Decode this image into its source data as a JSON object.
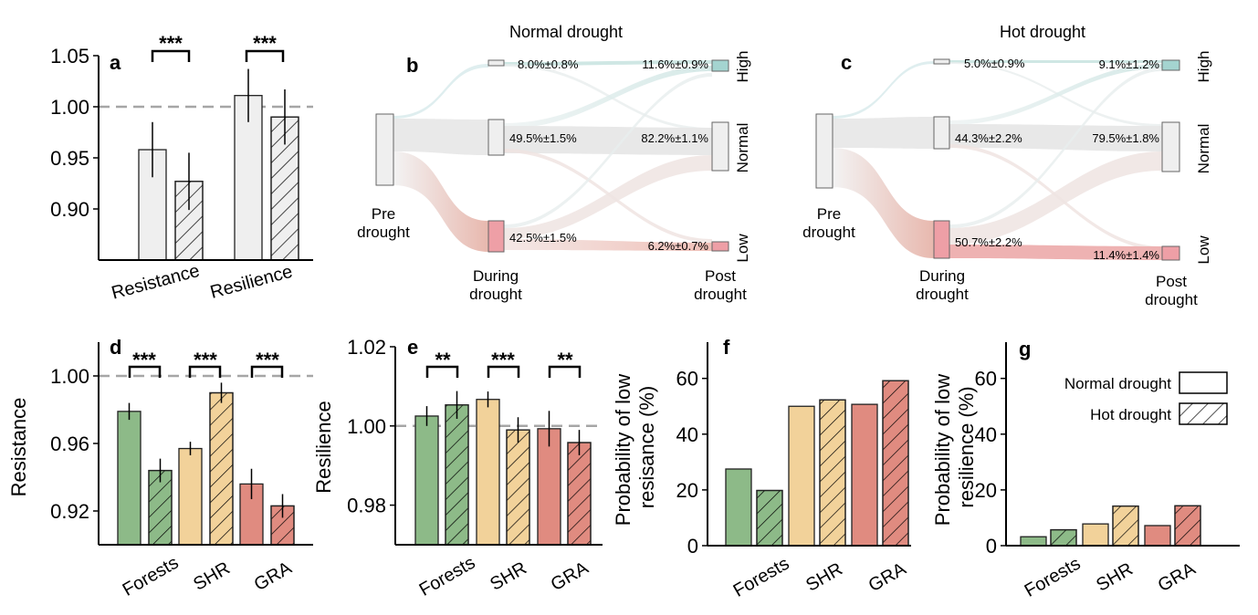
{
  "colors": {
    "neutral": "#efefef",
    "forests": "#8dba88",
    "shr": "#f2d29a",
    "gra": "#e08b80",
    "high": "#a4d4d0",
    "low": "#ee9fa6",
    "dash": "#a6a6a6"
  },
  "chart_data": [
    {
      "id": "a",
      "type": "bar",
      "panel_label": "a",
      "categories": [
        "Resistance",
        "Resilience"
      ],
      "series": [
        {
          "pattern": "solid",
          "values": [
            0.958,
            1.011
          ],
          "errors": [
            0.027,
            0.026
          ]
        },
        {
          "pattern": "hatched",
          "values": [
            0.927,
            0.99
          ],
          "errors": [
            0.028,
            0.027
          ]
        }
      ],
      "ylim": [
        0.85,
        1.05
      ],
      "yticks": [
        "0.90",
        "0.95",
        "1.00",
        "1.05"
      ],
      "reference_line": 1.0,
      "significance": [
        "***",
        "***"
      ]
    },
    {
      "id": "b",
      "type": "sankey",
      "panel_label": "b",
      "title": "Normal drought",
      "nodes": {
        "pre": "Pre drought",
        "during": "During drought",
        "post": "Post drought"
      },
      "states": [
        "High",
        "Normal",
        "Low"
      ],
      "during_pct": [
        "8.0%±0.8%",
        "49.5%±1.5%",
        "42.5%±1.5%"
      ],
      "post_pct": [
        "11.6%±0.9%",
        "82.2%±1.1%",
        "6.2%±0.7%"
      ]
    },
    {
      "id": "c",
      "type": "sankey",
      "panel_label": "c",
      "title": "Hot drought",
      "nodes": {
        "pre": "Pre drought",
        "during": "During drought",
        "post": "Post drought"
      },
      "states": [
        "High",
        "Normal",
        "Low"
      ],
      "during_pct": [
        "5.0%±0.9%",
        "44.3%±2.2%",
        "50.7%±2.2%"
      ],
      "post_pct": [
        "9.1%±1.2%",
        "79.5%±1.8%",
        "11.4%±1.4%"
      ]
    },
    {
      "id": "d",
      "type": "bar",
      "panel_label": "d",
      "ylabel": "Resistance",
      "categories": [
        "Forests",
        "SHR",
        "GRA"
      ],
      "series": [
        {
          "pattern": "solid",
          "values": [
            0.979,
            0.957,
            0.936
          ],
          "errors": [
            0.005,
            0.004,
            0.009
          ]
        },
        {
          "pattern": "hatched",
          "values": [
            0.944,
            0.99,
            0.923
          ],
          "errors": [
            0.007,
            0.006,
            0.007
          ]
        }
      ],
      "ylim": [
        0.9,
        1.02
      ],
      "yticks": [
        "0.92",
        "0.96",
        "1.00"
      ],
      "reference_line": 1.0,
      "significance": [
        "***",
        "***",
        "***"
      ]
    },
    {
      "id": "e",
      "type": "bar",
      "panel_label": "e",
      "ylabel": "Resilience",
      "categories": [
        "Forests",
        "SHR",
        "GRA"
      ],
      "series": [
        {
          "pattern": "solid",
          "values": [
            1.0025,
            1.0067,
            0.9993
          ],
          "errors": [
            0.0025,
            0.002,
            0.0045
          ]
        },
        {
          "pattern": "hatched",
          "values": [
            1.0053,
            0.999,
            0.9958
          ],
          "errors": [
            0.0035,
            0.0032,
            0.0032
          ]
        }
      ],
      "ylim": [
        0.97,
        1.02
      ],
      "yticks": [
        "0.98",
        "1.00",
        "1.02"
      ],
      "reference_line": 1.0,
      "significance": [
        "**",
        "***",
        "**"
      ]
    },
    {
      "id": "f",
      "type": "bar",
      "panel_label": "f",
      "ylabel": "Probability of low resisance (%)",
      "categories": [
        "Forests",
        "SHR",
        "GRA"
      ],
      "series": [
        {
          "pattern": "solid",
          "values": [
            27.5,
            50.0,
            50.7
          ]
        },
        {
          "pattern": "hatched",
          "values": [
            19.8,
            52.3,
            59.2
          ]
        }
      ],
      "ylim": [
        0,
        73
      ],
      "yticks": [
        "0",
        "20",
        "40",
        "60"
      ]
    },
    {
      "id": "g",
      "type": "bar",
      "panel_label": "g",
      "ylabel": "Probability of low resilience (%)",
      "categories": [
        "Forests",
        "SHR",
        "GRA"
      ],
      "series": [
        {
          "name": "Normal drought",
          "pattern": "solid",
          "values": [
            3.2,
            7.8,
            7.2
          ]
        },
        {
          "name": "Hot drought",
          "pattern": "hatched",
          "values": [
            5.7,
            14.2,
            14.3
          ]
        }
      ],
      "ylim": [
        0,
        73
      ],
      "yticks": [
        "0",
        "20",
        "40",
        "60"
      ],
      "legend": "top-right"
    }
  ]
}
